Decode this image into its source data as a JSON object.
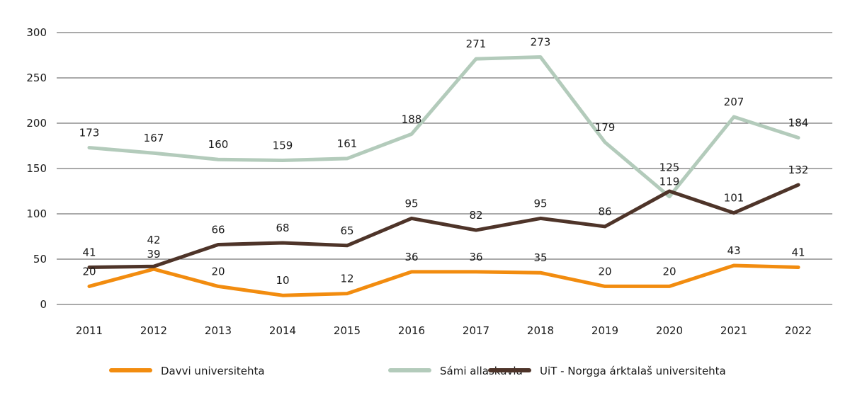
{
  "chart_data": {
    "type": "line",
    "categories": [
      "2011",
      "2012",
      "2013",
      "2014",
      "2015",
      "2016",
      "2017",
      "2018",
      "2019",
      "2020",
      "2021",
      "2022"
    ],
    "series": [
      {
        "name": "Davvi universitehta",
        "color": "#f28c0f",
        "values": [
          20,
          39,
          20,
          10,
          12,
          36,
          36,
          35,
          20,
          20,
          43,
          41
        ]
      },
      {
        "name": "Sámi allaskuvla",
        "color": "#b3cbbb",
        "values": [
          173,
          167,
          160,
          159,
          161,
          188,
          271,
          273,
          179,
          119,
          207,
          184
        ]
      },
      {
        "name": "UiT - Norgga árktalaš universitehta",
        "color": "#4e3429",
        "values": [
          41,
          42,
          66,
          68,
          65,
          95,
          82,
          95,
          86,
          125,
          101,
          132
        ]
      }
    ],
    "yticks": [
      "0",
      "50",
      "100",
      "150",
      "200",
      "250",
      "300"
    ],
    "ylim": [
      0,
      300
    ],
    "grid": true,
    "data_labels": true,
    "legend": "bottom",
    "title": "",
    "xlabel": "",
    "ylabel": ""
  }
}
